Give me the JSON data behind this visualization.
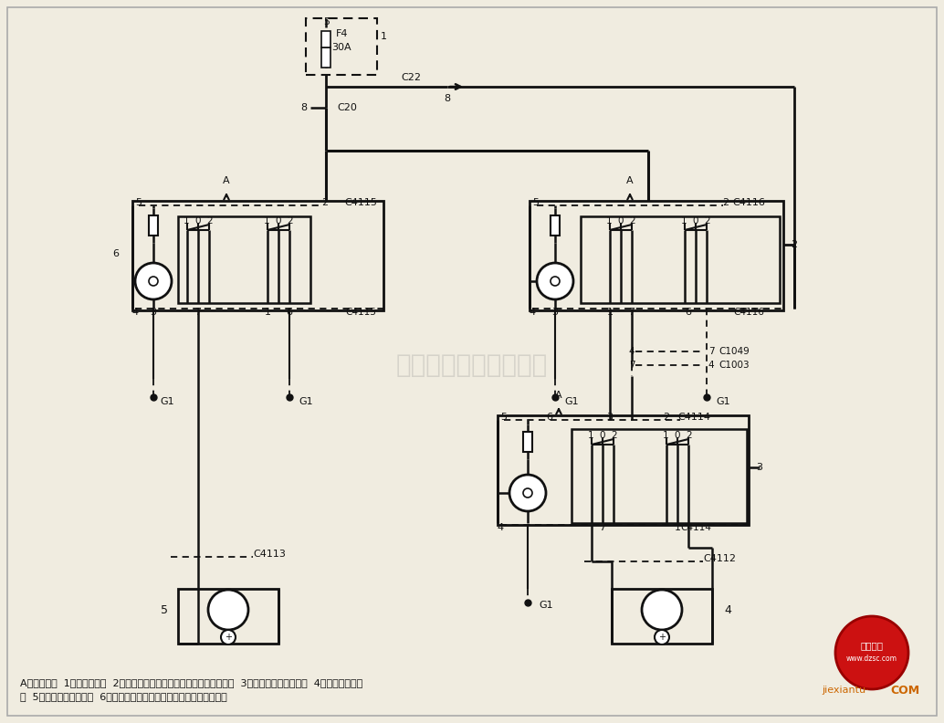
{
  "bg_color": "#f0ece0",
  "line_color": "#111111",
  "caption_line1": "A－仪表照明  1－中央电气盒  2－控制乘客侧门窗的驾驶员侧电动门窗开关  3－乘客侧电动门窗开关  4－乘客侧门窗电",
  "caption_line2": "机  5－驾驶员侧门窗电机  6－控制驾驶员侧门窗的驾驶员侧电动门窗开关",
  "watermark": "杭州将睭科技有限公司"
}
